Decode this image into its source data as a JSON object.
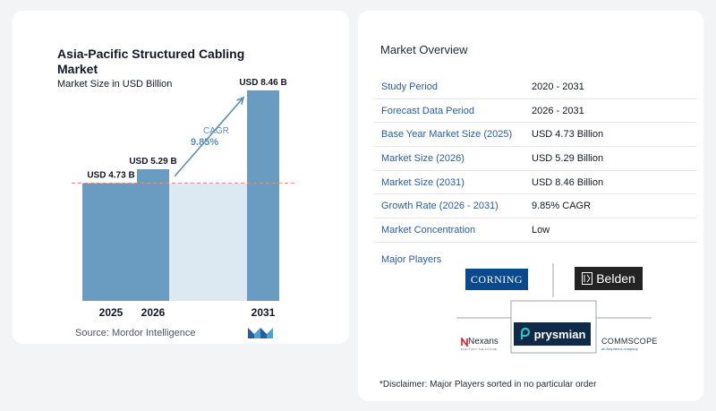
{
  "chart": {
    "title": "Asia-Pacific Structured Cabling Market",
    "subtitle": "Market Size in USD Billion",
    "source": "Source:  Mordor Intelligence",
    "cagr_label": "CAGR",
    "cagr_value": "9.85%"
  },
  "chart_data": {
    "type": "bar",
    "categories": [
      "2025",
      "2026",
      "2031"
    ],
    "values": [
      4.73,
      5.29,
      8.46
    ],
    "data_labels": [
      "USD 4.73 B",
      "USD 5.29 B",
      "USD 8.46 B"
    ],
    "title": "Asia-Pacific Structured Cabling Market",
    "subtitle": "Market Size in USD Billion",
    "ylim": [
      0,
      9.5
    ],
    "grid": false,
    "reference_line_value": 4.73,
    "annotation": "CAGR 9.85%",
    "colors": {
      "bar": "#6a9cc1",
      "fill_region": "#dde9f2",
      "reference_line": "#e38a8a",
      "arrow": "#5b8fb5"
    }
  },
  "overview": {
    "title": "Market Overview",
    "rows": [
      {
        "label": "Study Period",
        "value": "2020 - 2031"
      },
      {
        "label": "Forecast Data Period",
        "value": "2026 - 2031"
      },
      {
        "label": "Base Year Market Size (2025)",
        "value": "USD 4.73 Billion"
      },
      {
        "label": "Market Size (2026)",
        "value": "USD 5.29 Billion"
      },
      {
        "label": "Market Size (2031)",
        "value": "USD 8.46 Billion"
      },
      {
        "label": "Growth Rate (2026 - 2031)",
        "value": "9.85% CAGR"
      },
      {
        "label": "Market Concentration",
        "value": "Low"
      }
    ],
    "players_label": "Major Players",
    "players": {
      "corning": "CORNING",
      "belden": "Belden",
      "prysmian": "prysmian",
      "nexans": "Nexans",
      "nexans_tagline": "ELECTRIFY THE FUTURE",
      "commscope": "COMMSCOPE",
      "commscope_tagline": "an Amphenol company"
    },
    "disclaimer": "*Disclaimer: Major Players sorted in no particular order"
  }
}
